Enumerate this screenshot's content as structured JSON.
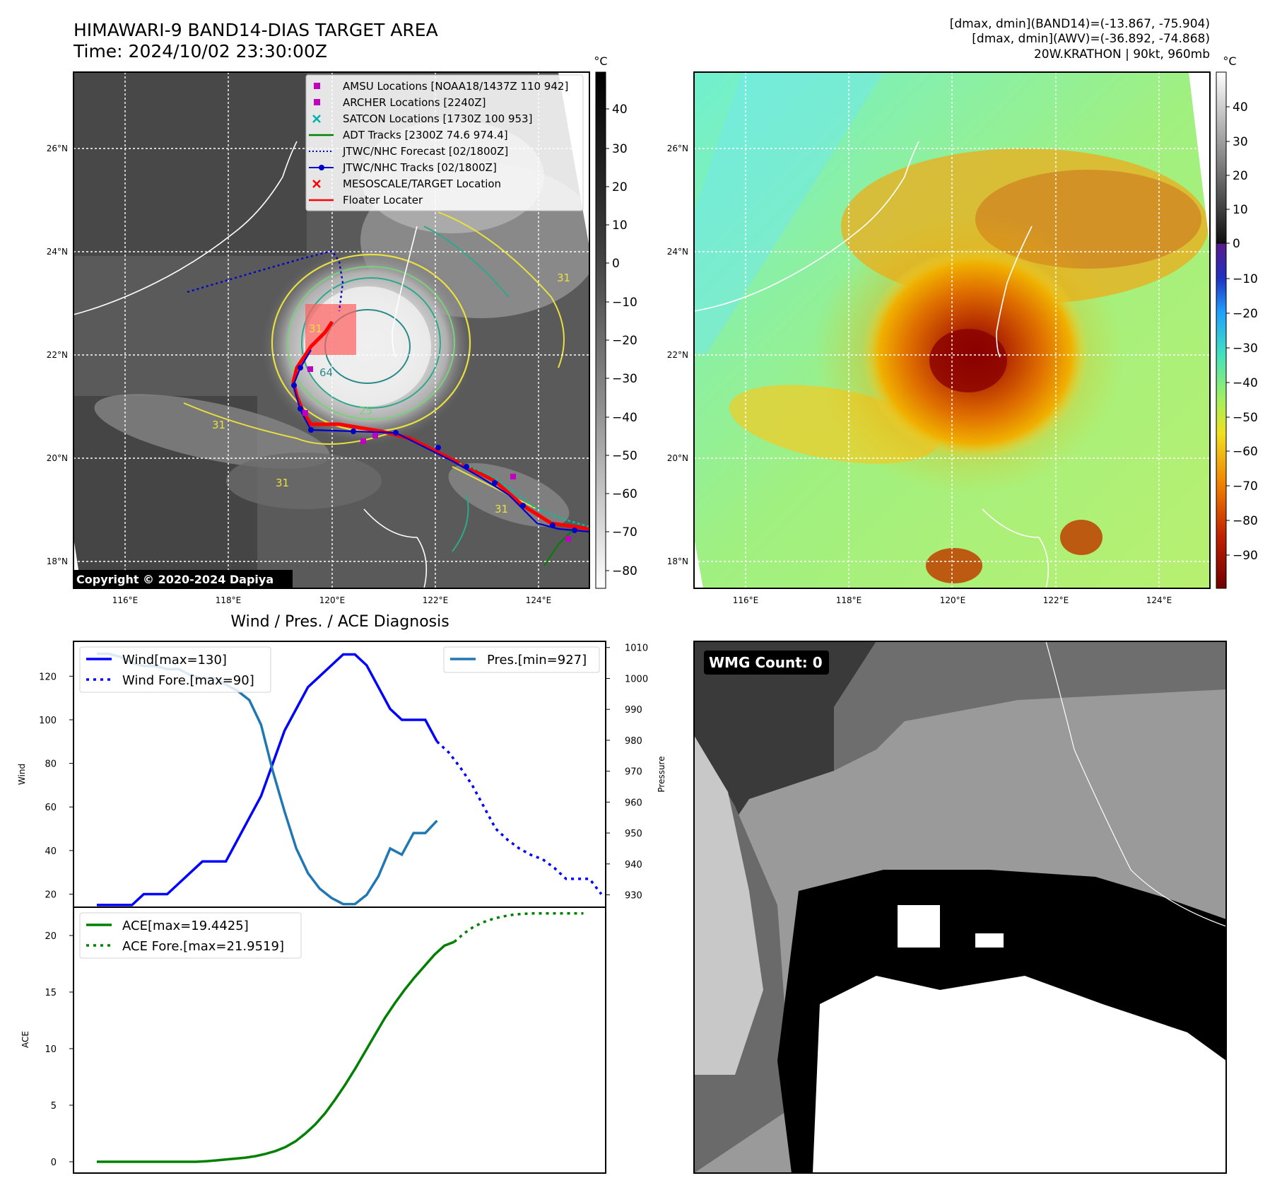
{
  "header": {
    "title": "HIMAWARI-9 BAND14-DIAS TARGET AREA",
    "time": "Time: 2024/10/02 23:30:00Z",
    "info_band14": "[dmax, dmin](BAND14)=(-13.867, -75.904)",
    "info_awv": "[dmax, dmin](AWV)=(-36.892, -74.868)",
    "storm": "20W.KRATHON | 90kt, 960mb"
  },
  "maps": {
    "lon_labels": [
      "116°E",
      "118°E",
      "120°E",
      "122°E",
      "124°E"
    ],
    "lat_labels": [
      "26°N",
      "24°N",
      "22°N",
      "20°N",
      "18°N"
    ],
    "copyright": "Copyright © 2020-2024 Dapiya",
    "contour_labels": [
      "31",
      "64",
      "31",
      "31",
      "31",
      "31",
      "25"
    ],
    "legend": [
      {
        "label": "AMSU Locations [NOAA18/1437Z 110 942]",
        "color": "#c000c0",
        "marker": "square"
      },
      {
        "label": "ARCHER Locations [2240Z]",
        "color": "#c000c0",
        "marker": "square"
      },
      {
        "label": "SATCON Locations [1730Z 100 953]",
        "color": "#00b0b0",
        "marker": "x"
      },
      {
        "label": "ADT Tracks [2300Z 74.6 974.4]",
        "color": "#008000",
        "marker": "line"
      },
      {
        "label": "JTWC/NHC Forecast [02/1800Z]",
        "color": "#0000cc",
        "marker": "dotted"
      },
      {
        "label": "JTWC/NHC Tracks [02/1800Z]",
        "color": "#0000cc",
        "marker": "line-dot"
      },
      {
        "label": "MESOSCALE/TARGET Location",
        "color": "#ff0000",
        "marker": "x"
      },
      {
        "label": "Floater Locater",
        "color": "#ff0000",
        "marker": "line"
      }
    ]
  },
  "colorbar_ir": {
    "unit": "°C",
    "ticks": [
      "40",
      "30",
      "20",
      "10",
      "0",
      "−10",
      "−20",
      "−30",
      "−40",
      "−50",
      "−60",
      "−70",
      "−80"
    ]
  },
  "colorbar_awv": {
    "unit": "°C",
    "ticks": [
      "40",
      "30",
      "20",
      "10",
      "0",
      "−10",
      "−20",
      "−30",
      "−40",
      "−50",
      "−60",
      "−70",
      "−80",
      "−90"
    ]
  },
  "wmg": {
    "label": "WMG Count: 0"
  },
  "chart_data": [
    {
      "type": "line",
      "title": "Wind / Pres. / ACE Diagnosis",
      "ylabel": "Wind",
      "ylabel_right": "Pressure",
      "ylim": [
        14,
        136
      ],
      "ylim_right": [
        926,
        1012
      ],
      "y_ticks": [
        20,
        40,
        60,
        80,
        100,
        120
      ],
      "y_ticks_right": [
        930,
        940,
        950,
        960,
        970,
        980,
        990,
        1000,
        1010
      ],
      "legend_left": [
        "Wind[max=130]",
        "Wind Fore.[max=90]"
      ],
      "legend_right": [
        "Pres.[min=927]"
      ],
      "series": [
        {
          "name": "Wind[max=130]",
          "style": "solid",
          "color": "#0000ff",
          "values": [
            15,
            15,
            15,
            15,
            20,
            20,
            20,
            25,
            30,
            35,
            35,
            35,
            45,
            55,
            65,
            80,
            95,
            105,
            115,
            120,
            125,
            130,
            130,
            125,
            115,
            105,
            100,
            100,
            100,
            90
          ]
        },
        {
          "name": "Wind Fore.[max=90]",
          "style": "dotted",
          "color": "#0000ff",
          "values": [
            null,
            null,
            null,
            null,
            null,
            null,
            null,
            null,
            null,
            null,
            null,
            null,
            null,
            null,
            null,
            null,
            null,
            null,
            null,
            null,
            null,
            null,
            null,
            null,
            null,
            null,
            null,
            null,
            null,
            90,
            85,
            78,
            70,
            60,
            50,
            45,
            41,
            38,
            36,
            32,
            27,
            27,
            27,
            20
          ]
        },
        {
          "name": "Pres.[min=927]",
          "style": "solid",
          "color": "#1f77b4",
          "axis": "right",
          "values": [
            1008,
            1008,
            1007,
            1005,
            1004,
            1004,
            1003,
            1003,
            1001,
            1000,
            1000,
            998,
            996,
            993,
            985,
            970,
            957,
            945,
            937,
            932,
            929,
            927,
            927,
            930,
            936,
            945,
            943,
            950,
            950,
            954
          ]
        }
      ]
    },
    {
      "type": "line",
      "ylabel": "ACE",
      "ylim": [
        -1,
        22.5
      ],
      "y_ticks": [
        0,
        5,
        10,
        15,
        20
      ],
      "legend": [
        "ACE[max=19.4425]",
        "ACE Fore.[max=21.9519]"
      ],
      "series": [
        {
          "name": "ACE[max=19.4425]",
          "style": "solid",
          "color": "#008000",
          "values": [
            0,
            0,
            0,
            0,
            0,
            0,
            0,
            0,
            0,
            0,
            0,
            0.05,
            0.12,
            0.2,
            0.28,
            0.37,
            0.5,
            0.7,
            0.95,
            1.3,
            1.8,
            2.5,
            3.3,
            4.3,
            5.5,
            6.8,
            8.2,
            9.7,
            11.2,
            12.7,
            14.0,
            15.2,
            16.3,
            17.3,
            18.3,
            19.1,
            19.44
          ]
        },
        {
          "name": "ACE Fore.[max=21.9519]",
          "style": "dotted",
          "color": "#008000",
          "values": [
            null,
            null,
            null,
            null,
            null,
            null,
            null,
            null,
            null,
            null,
            null,
            null,
            null,
            null,
            null,
            null,
            null,
            null,
            null,
            null,
            null,
            null,
            null,
            null,
            null,
            null,
            null,
            null,
            null,
            null,
            null,
            null,
            null,
            null,
            null,
            null,
            19.44,
            20.2,
            20.8,
            21.2,
            21.5,
            21.7,
            21.85,
            21.92,
            21.95,
            21.95,
            21.95,
            21.95,
            21.95,
            21.95
          ]
        }
      ]
    }
  ]
}
